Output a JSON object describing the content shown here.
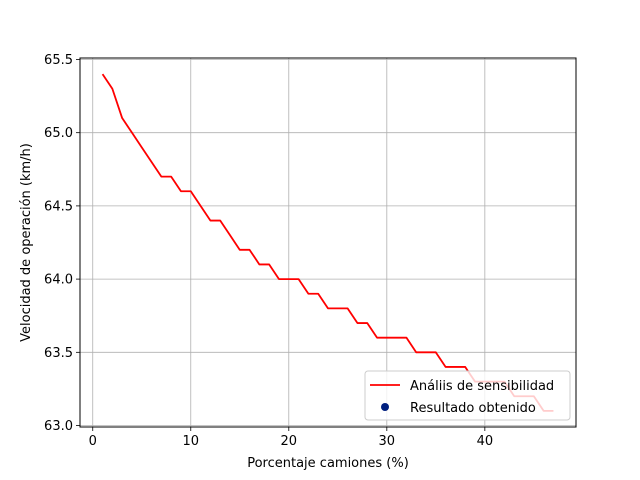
{
  "chart_data": {
    "type": "line",
    "title": "",
    "xlabel": "Porcentaje camiones (%)",
    "ylabel": "Velocidad de operación (km/h)",
    "xlim": [
      -1.3,
      49.3
    ],
    "ylim": [
      62.99,
      65.51
    ],
    "xticks": [
      0,
      10,
      20,
      30,
      40
    ],
    "yticks": [
      63.0,
      63.5,
      64.0,
      64.5,
      65.0,
      65.5
    ],
    "ytick_labels": [
      "63.0",
      "63.5",
      "64.0",
      "64.5",
      "65.0",
      "65.5"
    ],
    "grid": true,
    "legend_position": "lower-right",
    "series": [
      {
        "name": "Análiis de sensibilidad",
        "kind": "line",
        "color": "#ff0000",
        "x": [
          1,
          2,
          3,
          4,
          5,
          6,
          7,
          8,
          9,
          10,
          11,
          12,
          13,
          14,
          15,
          16,
          17,
          18,
          19,
          20,
          21,
          22,
          23,
          24,
          25,
          26,
          27,
          28,
          29,
          30,
          31,
          32,
          33,
          34,
          35,
          36,
          37,
          38,
          39,
          40,
          41,
          42,
          43,
          44,
          45,
          46,
          47
        ],
        "y": [
          65.4,
          65.3,
          65.1,
          65.0,
          64.9,
          64.8,
          64.7,
          64.7,
          64.6,
          64.6,
          64.5,
          64.4,
          64.4,
          64.3,
          64.2,
          64.2,
          64.1,
          64.1,
          64.0,
          64.0,
          64.0,
          63.9,
          63.9,
          63.8,
          63.8,
          63.8,
          63.7,
          63.7,
          63.6,
          63.6,
          63.6,
          63.6,
          63.5,
          63.5,
          63.5,
          63.4,
          63.4,
          63.4,
          63.3,
          63.3,
          63.3,
          63.3,
          63.2,
          63.2,
          63.2,
          63.1,
          63.1
        ]
      },
      {
        "name": "Resultado obtenido",
        "kind": "scatter",
        "color": "#001f7f",
        "x": [],
        "y": []
      }
    ]
  }
}
